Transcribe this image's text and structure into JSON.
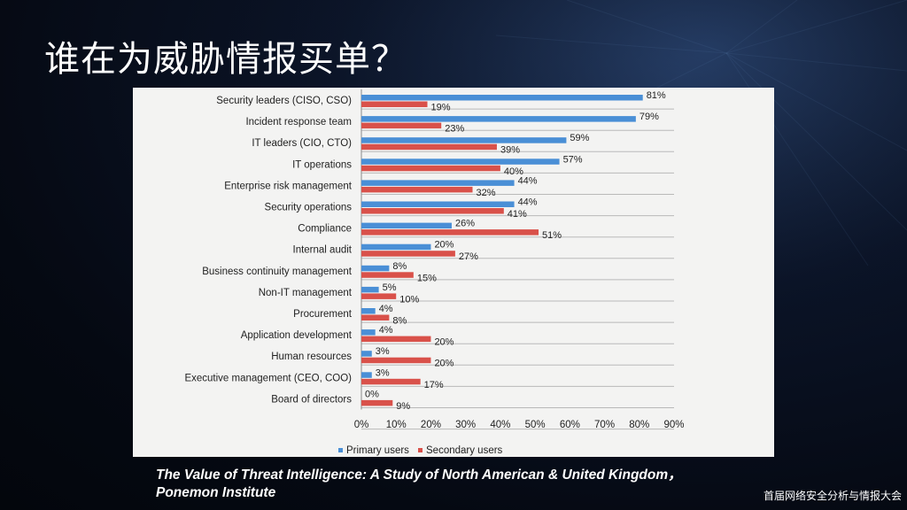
{
  "slide": {
    "title": "谁在为威胁情报买单？",
    "caption_line1": "The Value of Threat Intelligence: A Study of North American & United Kingdom，",
    "caption_line2": "Ponemon Institute",
    "footer": "首届网络安全分析与情报大会"
  },
  "colors": {
    "primary": "#4a8fd6",
    "secondary": "#d9514a",
    "panel": "#f3f3f2"
  },
  "chart_data": {
    "type": "bar",
    "orientation": "horizontal",
    "categories": [
      "Security leaders (CISO, CSO)",
      "Incident response team",
      "IT leaders (CIO, CTO)",
      "IT operations",
      "Enterprise risk management",
      "Security operations",
      "Compliance",
      "Internal audit",
      "Business continuity management",
      "Non-IT management",
      "Procurement",
      "Application development",
      "Human resources",
      "Executive management (CEO, COO)",
      "Board of directors"
    ],
    "series": [
      {
        "name": "Primary users",
        "values": [
          81,
          79,
          59,
          57,
          44,
          44,
          26,
          20,
          8,
          5,
          4,
          4,
          3,
          3,
          0
        ]
      },
      {
        "name": "Secondary users",
        "values": [
          19,
          23,
          39,
          40,
          32,
          41,
          51,
          27,
          15,
          10,
          8,
          20,
          20,
          17,
          9
        ]
      }
    ],
    "xlim": [
      0,
      90
    ],
    "xticks": [
      "0%",
      "10%",
      "20%",
      "30%",
      "40%",
      "50%",
      "60%",
      "70%",
      "80%",
      "90%"
    ],
    "value_suffix": "%",
    "legend_position": "bottom",
    "grid": "horizontal separators"
  }
}
